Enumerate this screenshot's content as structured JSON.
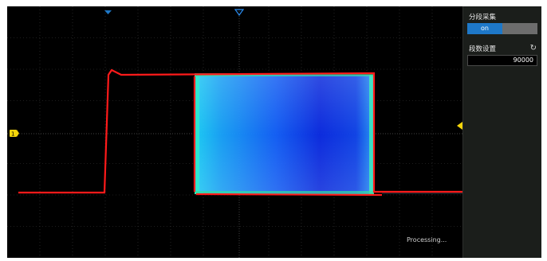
{
  "side_menu": {
    "segmented_acquisition_label": "分段采集",
    "toggle_on_label": "on",
    "segment_count_label": "段数设置",
    "segment_count_value": "90000"
  },
  "screen": {
    "status_text": "Processing...",
    "grid_divisions": {
      "horizontal": 14,
      "vertical": 8
    },
    "trigger_level_marker_color": "#f5d50a",
    "trigger_position_marker_color": "#1e78c8",
    "channel1_marker_color": "#f5d50a",
    "trace_color": "#ff1a1a",
    "persistence_colors": [
      "#00e0ff",
      "#0066ff",
      "#1020e0"
    ]
  },
  "colors": {
    "background": "#000000",
    "side_panel": "#1b1e1b",
    "accent": "#1e78c8",
    "toggle_off": "#6d6d6d"
  }
}
